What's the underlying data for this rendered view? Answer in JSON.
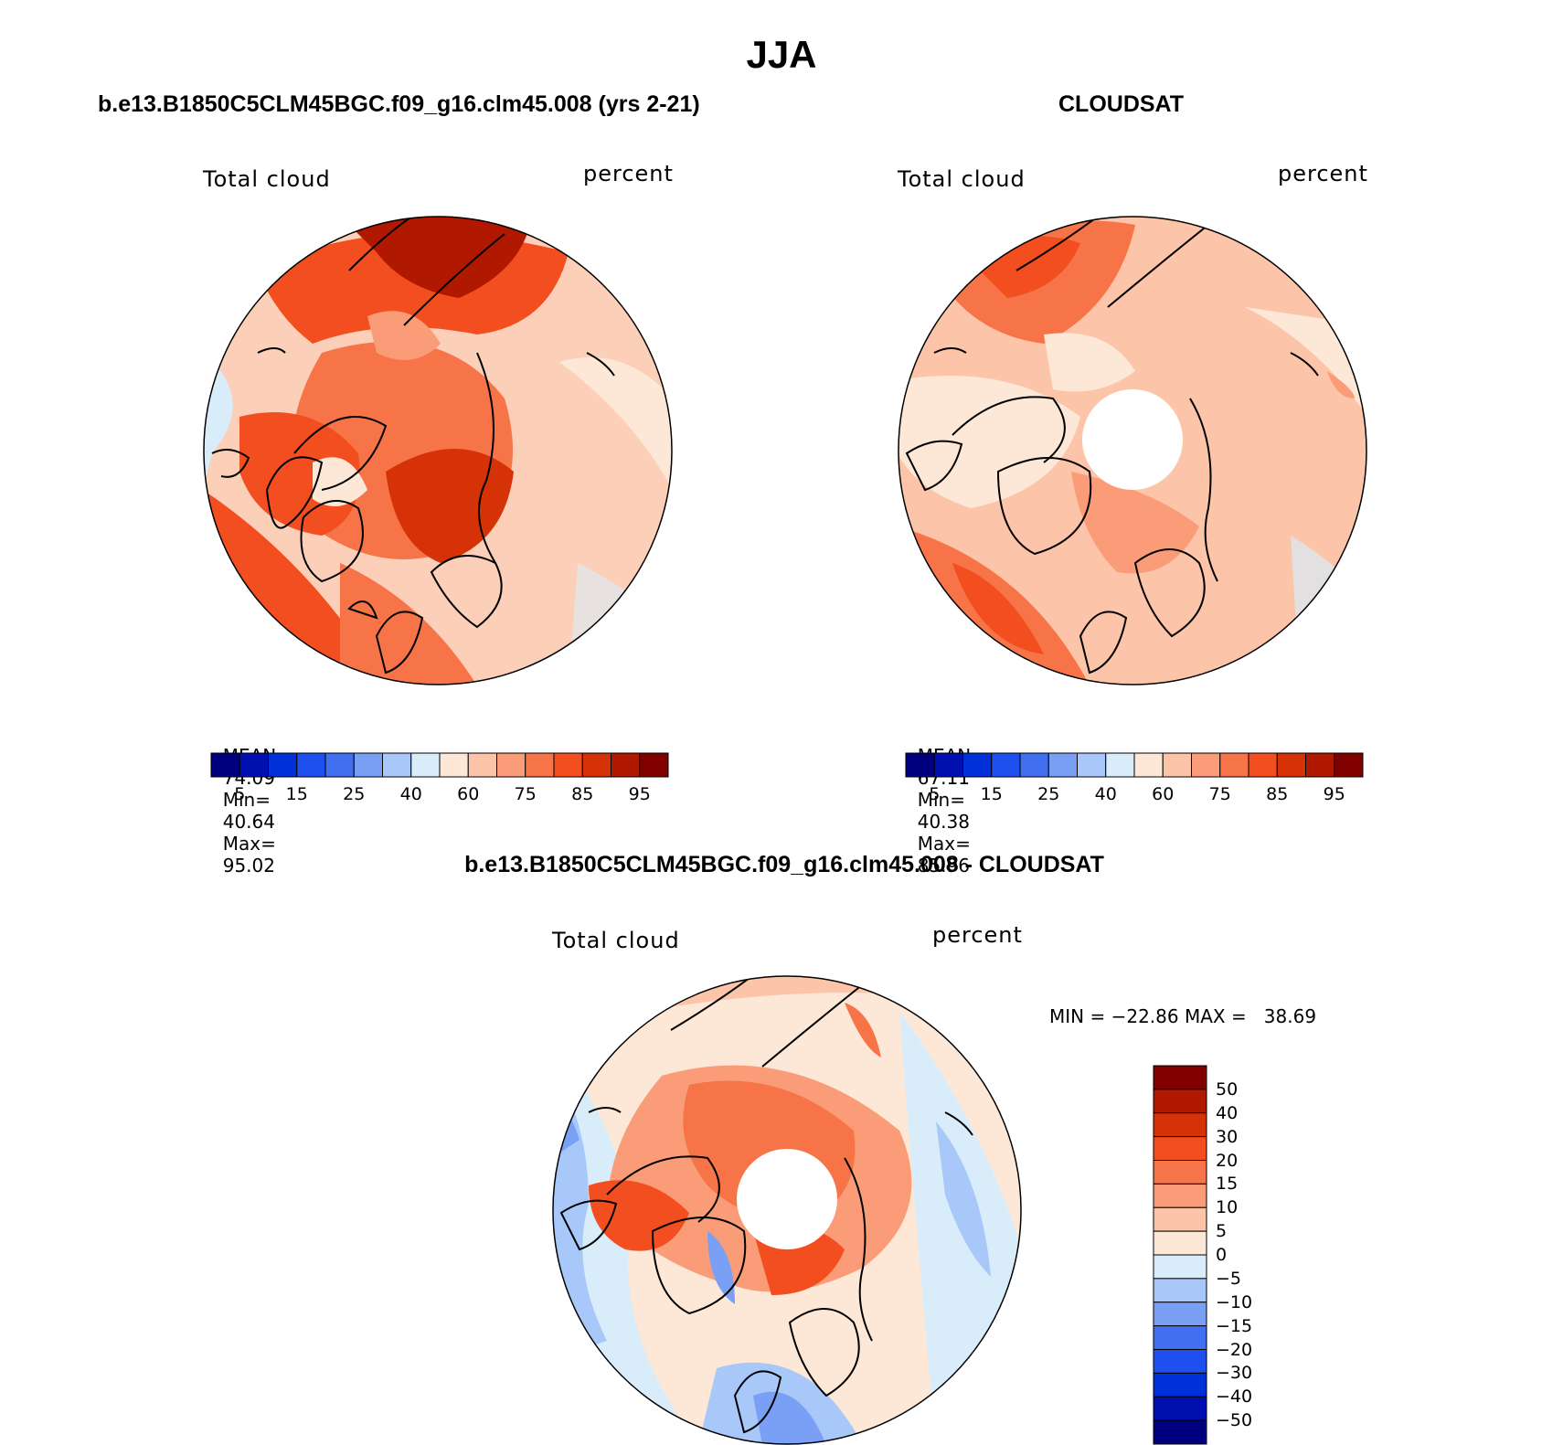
{
  "season_title": "JJA",
  "panels": [
    {
      "id": "model",
      "header": "b.e13.B1850C5CLM45BGC.f09_g16.clm45.008 (yrs 2-21)",
      "left_label": "Total cloud",
      "right_label": "percent",
      "stats": {
        "mean_label": "MEAN=",
        "mean": "74.09",
        "min_label": "Min=",
        "min": "40.64",
        "max_label": "Max=",
        "max": "95.02"
      }
    },
    {
      "id": "obs",
      "header": "CLOUDSAT",
      "left_label": "Total cloud",
      "right_label": "percent",
      "stats": {
        "mean_label": "MEAN=",
        "mean": "67.11",
        "min_label": "Min=",
        "min": "40.38",
        "max_label": "Max=",
        "max": "85.96"
      }
    }
  ],
  "field_colorbar": {
    "colors": [
      "#00007f",
      "#0010b0",
      "#0030d8",
      "#1e50f0",
      "#4070f0",
      "#7aa0f5",
      "#a8c8fa",
      "#d8ecfa",
      "#fde8d8",
      "#fcc4a8",
      "#fa9c78",
      "#f77448",
      "#f24e20",
      "#d63208",
      "#b01800",
      "#800000"
    ],
    "tick_labels": [
      "5",
      "15",
      "25",
      "40",
      "60",
      "75",
      "85",
      "95"
    ]
  },
  "difference": {
    "header": "b.e13.B1850C5CLM45BGC.f09_g16.clm45.008 - CLOUDSAT",
    "left_label": "Total cloud",
    "right_label": "percent",
    "minmax": "MIN = −22.86 MAX =   38.69",
    "colorbar": {
      "colors": [
        "#800000",
        "#b01800",
        "#d63208",
        "#f24e20",
        "#f77448",
        "#fa9c78",
        "#fcc4a8",
        "#fde8d8",
        "#d8ecfa",
        "#a8c8fa",
        "#7aa0f5",
        "#4070f0",
        "#1e50f0",
        "#0030d8",
        "#0010b0",
        "#00007f"
      ],
      "tick_labels": [
        "50",
        "40",
        "30",
        "20",
        "15",
        "10",
        "5",
        "0",
        "−5",
        "−10",
        "−15",
        "−20",
        "−30",
        "−40",
        "−50"
      ]
    }
  }
}
